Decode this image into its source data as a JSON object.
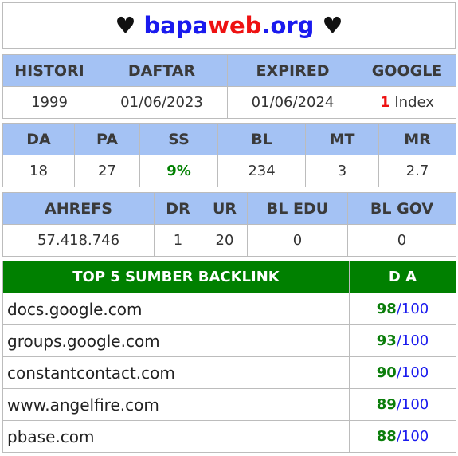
{
  "title": {
    "heart_left": "♥",
    "part1": "bapa",
    "part2": "web",
    "part3": ".org",
    "heart_right": "♥"
  },
  "row1": {
    "headers": [
      "HISTORI",
      "DAFTAR",
      "EXPIRED",
      "GOOGLE"
    ],
    "values": {
      "histori": "1999",
      "daftar": "01/06/2023",
      "expired": "01/06/2024",
      "google_count": "1",
      "google_label": " Index"
    }
  },
  "row2": {
    "headers": [
      "DA",
      "PA",
      "SS",
      "BL",
      "MT",
      "MR"
    ],
    "values": [
      "18",
      "27",
      "9%",
      "234",
      "3",
      "2.7"
    ]
  },
  "row3": {
    "headers": [
      "AHREFS",
      "DR",
      "UR",
      "BL EDU",
      "BL GOV"
    ],
    "values": [
      "57.418.746",
      "1",
      "20",
      "0",
      "0"
    ]
  },
  "backlinks": {
    "header_title": "TOP 5 SUMBER BACKLINK",
    "header_da": "D A",
    "items": [
      {
        "site": "docs.google.com",
        "score": "98",
        "max": "/100"
      },
      {
        "site": "groups.google.com",
        "score": "93",
        "max": "/100"
      },
      {
        "site": "constantcontact.com",
        "score": "90",
        "max": "/100"
      },
      {
        "site": "www.angelfire.com",
        "score": "89",
        "max": "/100"
      },
      {
        "site": "pbase.com",
        "score": "88",
        "max": "/100"
      }
    ]
  },
  "colors": {
    "header_bg": "#a4c2f4",
    "backlink_header_bg": "#008000",
    "accent_blue": "#1a1aee",
    "accent_red": "#ee1111",
    "accent_green": "#008000"
  }
}
